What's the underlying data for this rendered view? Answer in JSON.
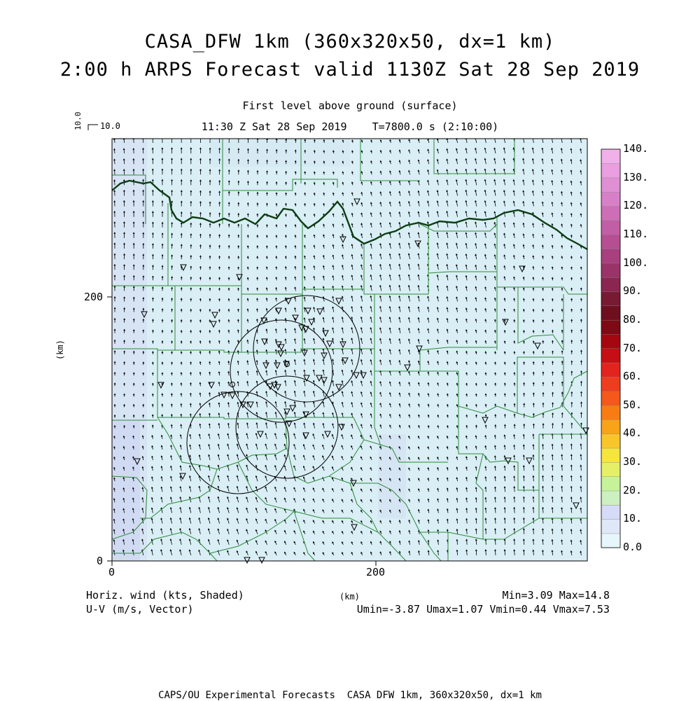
{
  "title_line1": "CASA_DFW 1km (360x320x50, dx=1 km)",
  "title_line2": "2:00 h ARPS Forecast valid 1130Z Sat 28 Sep 2019",
  "subtitle_level": "First level above ground (surface)",
  "subtitle_time": "11:30 Z Sat 28 Sep 2019    T=7800.0 s (2:10:00)",
  "ref_vector": {
    "vertical_label": "10.0",
    "horizontal_label": "10.0"
  },
  "axes": {
    "x_ticks": [
      "0",
      "200"
    ],
    "y_ticks": [
      "0",
      "200"
    ],
    "x_label": "(km)",
    "y_label": "(km)"
  },
  "colorbar": {
    "labels": [
      "0.0",
      "10.",
      "20.",
      "30.",
      "40.",
      "50.",
      "60.",
      "70.",
      "80.",
      "90.",
      "100.",
      "110.",
      "120.",
      "130.",
      "140."
    ],
    "colors": [
      "#e6f6fb",
      "#dfe8f7",
      "#d6dcf7",
      "#ccf0bf",
      "#c6f39a",
      "#e6f066",
      "#f5e53d",
      "#f8c62a",
      "#f9a31a",
      "#f97c12",
      "#f4581a",
      "#ee3d1e",
      "#e3231e",
      "#c60f14",
      "#a4070f",
      "#7d0a14",
      "#6e0f1f",
      "#791a35",
      "#8a2650",
      "#9a3468",
      "#a83f7e",
      "#b64e92",
      "#c25ea5",
      "#cd6fb7",
      "#d780c7",
      "#e08fd4",
      "#e99fe0",
      "#f0b0ea"
    ]
  },
  "legend_left_line1": "Horiz. wind (kts, Shaded)",
  "legend_left_line2": "U-V (m/s, Vector)",
  "legend_center": "(km)",
  "legend_right_line1": "Min=3.09 Max=14.8",
  "legend_right_line2": "Umin=-3.87 Umax=1.07 Vmin=0.44 Vmax=7.53",
  "footer": "CAPS/OU Experimental Forecasts  CASA DFW 1km, 360x320x50, dx=1 km",
  "field_stats": {
    "min": 3.09,
    "max": 14.8,
    "umin": -3.87,
    "umax": 1.07,
    "vmin": 0.44,
    "vmax": 7.53
  },
  "colors": {
    "background": "#d9eef5",
    "county_lines": "#2f8a3a",
    "river": "#0d3d14",
    "radar_rings": "#000000",
    "stations": "#000000"
  },
  "map_extent_km": {
    "x": [
      0,
      360
    ],
    "y": [
      0,
      320
    ]
  }
}
